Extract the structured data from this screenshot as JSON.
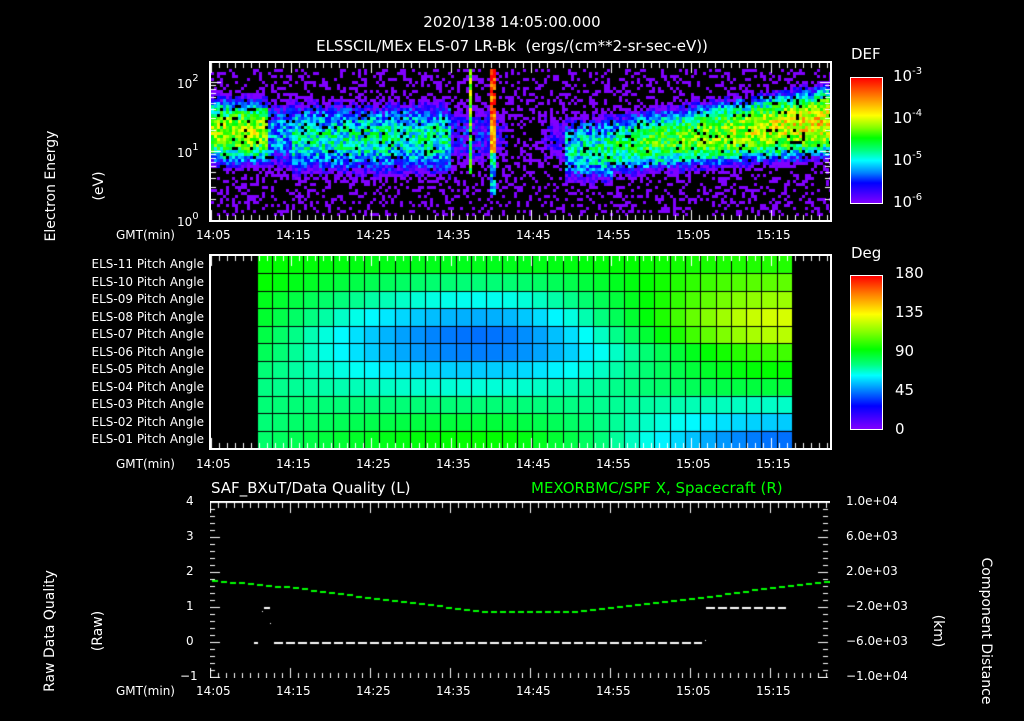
{
  "header": {
    "datetime": "2020/138 14:05:00.000",
    "subtitle": "ELSSCIL/MEx ELS-07 LR-Bk  (ergs/(cm**2-sr-sec-eV))"
  },
  "time_axis": {
    "label": "GMT(min)",
    "ticks": [
      "14:05",
      "14:15",
      "14:25",
      "14:35",
      "14:45",
      "14:55",
      "15:05",
      "15:15"
    ]
  },
  "panel1": {
    "ylabel_line1": "Electron Energy",
    "ylabel_line2": "(eV)",
    "y_ticks": [
      {
        "base": "10",
        "exp": "2"
      },
      {
        "base": "10",
        "exp": "1"
      },
      {
        "base": "10",
        "exp": "0"
      }
    ],
    "colorbar": {
      "title": "DEF",
      "ticks": [
        {
          "base": "10",
          "exp": "-3"
        },
        {
          "base": "10",
          "exp": "-4"
        },
        {
          "base": "10",
          "exp": "-5"
        },
        {
          "base": "10",
          "exp": "-6"
        }
      ]
    }
  },
  "panel2": {
    "row_labels": [
      "ELS-11 Pitch Angle",
      "ELS-10 Pitch Angle",
      "ELS-09 Pitch Angle",
      "ELS-08 Pitch Angle",
      "ELS-07 Pitch Angle",
      "ELS-06 Pitch Angle",
      "ELS-05 Pitch Angle",
      "ELS-04 Pitch Angle",
      "ELS-03 Pitch Angle",
      "ELS-02 Pitch Angle",
      "ELS-01 Pitch Angle"
    ],
    "colorbar": {
      "title": "Deg",
      "ticks": [
        "180",
        "135",
        "90",
        "45",
        "0"
      ]
    }
  },
  "panel3": {
    "left_title": "SAF_BXuT/Data Quality (L)",
    "right_title": "MEXORBMC/SPF X, Spacecraft (R)",
    "right_title_color": "#00ff00",
    "ylabel_left_line1": "Raw Data Quality",
    "ylabel_left_line2": "(Raw)",
    "ylabel_right_line1": "Component Distance",
    "ylabel_right_line2": "(km)",
    "left_ticks": [
      "4",
      "3",
      "2",
      "1",
      "0",
      "−1"
    ],
    "right_ticks": [
      "1.0e+04",
      "6.0e+03",
      "2.0e+03",
      "−2.0e+03",
      "−6.0e+03",
      "−1.0e+04"
    ]
  },
  "chart_data": [
    {
      "type": "heatmap",
      "title": "ELSSCIL/MEx ELS-07 LR-Bk (ergs/(cm**2-sr-sec-eV))",
      "xlabel": "GMT(min)",
      "ylabel": "Electron Energy (eV)",
      "x_ticks": [
        "14:05",
        "14:15",
        "14:25",
        "14:35",
        "14:45",
        "14:55",
        "15:05",
        "15:15"
      ],
      "x_range_min": [
        0,
        77.5
      ],
      "yscale": "log",
      "ylim": [
        1,
        200
      ],
      "colorbar": {
        "label": "DEF",
        "scale": "log",
        "range": [
          1e-06,
          0.001
        ]
      },
      "features": [
        {
          "t_min": [
            0,
            7
          ],
          "energy_eV": [
            10,
            40
          ],
          "level": 0.00015,
          "note": "green band"
        },
        {
          "t_min": [
            10,
            30
          ],
          "energy_eV": [
            5,
            40
          ],
          "level": 2e-05,
          "note": "cyan diffuse"
        },
        {
          "t_min": [
            32,
            32.5
          ],
          "energy_eV": [
            5,
            150
          ],
          "level": 6e-05,
          "note": "narrow green spike"
        },
        {
          "t_min": [
            34.5,
            35.5
          ],
          "energy_eV": [
            3,
            150
          ],
          "level": 0.0008,
          "note": "red/yellow spike"
        },
        {
          "t_min": [
            45,
            77.5
          ],
          "energy_eV": [
            8,
            60
          ],
          "level": 0.0003,
          "note": "rising green-yellow band"
        }
      ]
    },
    {
      "type": "heatmap",
      "title": "Pitch Angle",
      "xlabel": "GMT(min)",
      "y_categories": [
        "ELS-11",
        "ELS-10",
        "ELS-09",
        "ELS-08",
        "ELS-07",
        "ELS-06",
        "ELS-05",
        "ELS-04",
        "ELS-03",
        "ELS-02",
        "ELS-01"
      ],
      "x_range_min": [
        5.75,
        72.6
      ],
      "colorbar": {
        "label": "Deg",
        "range": [
          0,
          180
        ]
      },
      "values_deg_summary": {
        "start_cols": [
          100,
          100,
          95,
          92,
          88,
          85,
          80,
          78,
          80,
          80,
          82
        ],
        "min_center_cols_at_14_40": [
          95,
          80,
          65,
          50,
          40,
          42,
          55,
          68,
          80,
          90,
          100
        ],
        "end_cols": [
          105,
          115,
          125,
          135,
          130,
          110,
          100,
          90,
          70,
          55,
          40
        ]
      }
    },
    {
      "type": "line",
      "title": "SAF_BXuT/Data Quality (L) ; MEXORBMC/SPF X, Spacecraft (R)",
      "xlabel": "GMT(min)",
      "x_ticks": [
        "14:05",
        "14:15",
        "14:25",
        "14:35",
        "14:45",
        "14:55",
        "15:05",
        "15:15"
      ],
      "ylim_left": [
        -1,
        4
      ],
      "ylim_right": [
        -10000,
        10000
      ],
      "series": [
        {
          "name": "Data Quality (L)",
          "axis": "left",
          "color": "#ffffff",
          "x_min": [
            5.5,
            6.0,
            6.75,
            7.5,
            8.0,
            61.5,
            62.0,
            72.0
          ],
          "y": [
            0,
            0,
            1,
            1,
            0,
            0,
            1,
            1
          ]
        },
        {
          "name": "SPF X (R)",
          "axis": "right",
          "color": "#00ff00",
          "style": "dashed",
          "x_min": [
            0,
            10,
            20,
            30,
            35,
            40,
            45,
            50,
            60,
            70,
            77.5
          ],
          "y": [
            1100,
            300,
            -900,
            -2000,
            -2500,
            -2500,
            -2500,
            -2000,
            -1000,
            300,
            1100
          ]
        }
      ]
    }
  ]
}
